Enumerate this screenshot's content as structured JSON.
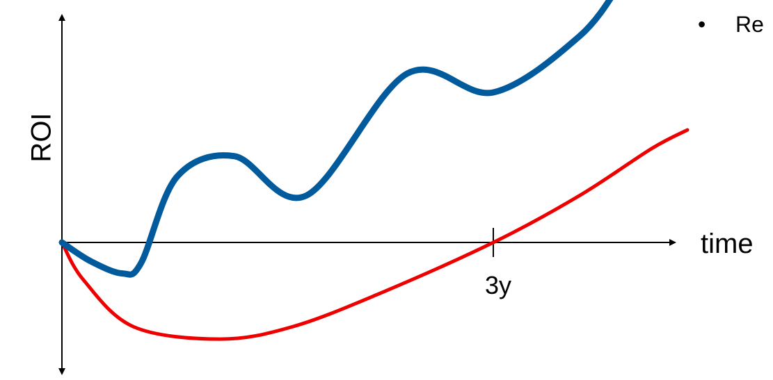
{
  "chart_data": {
    "type": "line",
    "ylabel": "ROI",
    "xlabel": "time",
    "x_ticks": [
      {
        "label": "3y",
        "value": 3
      }
    ],
    "xlim": [
      0,
      4.35
    ],
    "ylim": [
      -1.7,
      2.9
    ],
    "grid": false,
    "series": [
      {
        "color": "#005a9c",
        "points": [
          [
            0,
            0
          ],
          [
            0.2,
            -0.2
          ],
          [
            0.42,
            -0.33
          ],
          [
            0.55,
            -0.22
          ],
          [
            0.8,
            0.7
          ],
          [
            1.2,
            0.92
          ],
          [
            1.7,
            0.5
          ],
          [
            2.4,
            1.8
          ],
          [
            3.0,
            1.6
          ],
          [
            3.6,
            2.2
          ],
          [
            3.9,
            2.8
          ]
        ]
      },
      {
        "color": "#ee0000",
        "points": [
          [
            0,
            0
          ],
          [
            0.15,
            -0.4
          ],
          [
            0.5,
            -0.9
          ],
          [
            1.1,
            -1.03
          ],
          [
            1.6,
            -0.9
          ],
          [
            2.2,
            -0.55
          ],
          [
            3.0,
            0
          ],
          [
            3.6,
            0.5
          ],
          [
            4.1,
            1.0
          ],
          [
            4.35,
            1.2
          ]
        ]
      }
    ]
  },
  "side_text": {
    "bullet": "•",
    "text": "Re"
  }
}
